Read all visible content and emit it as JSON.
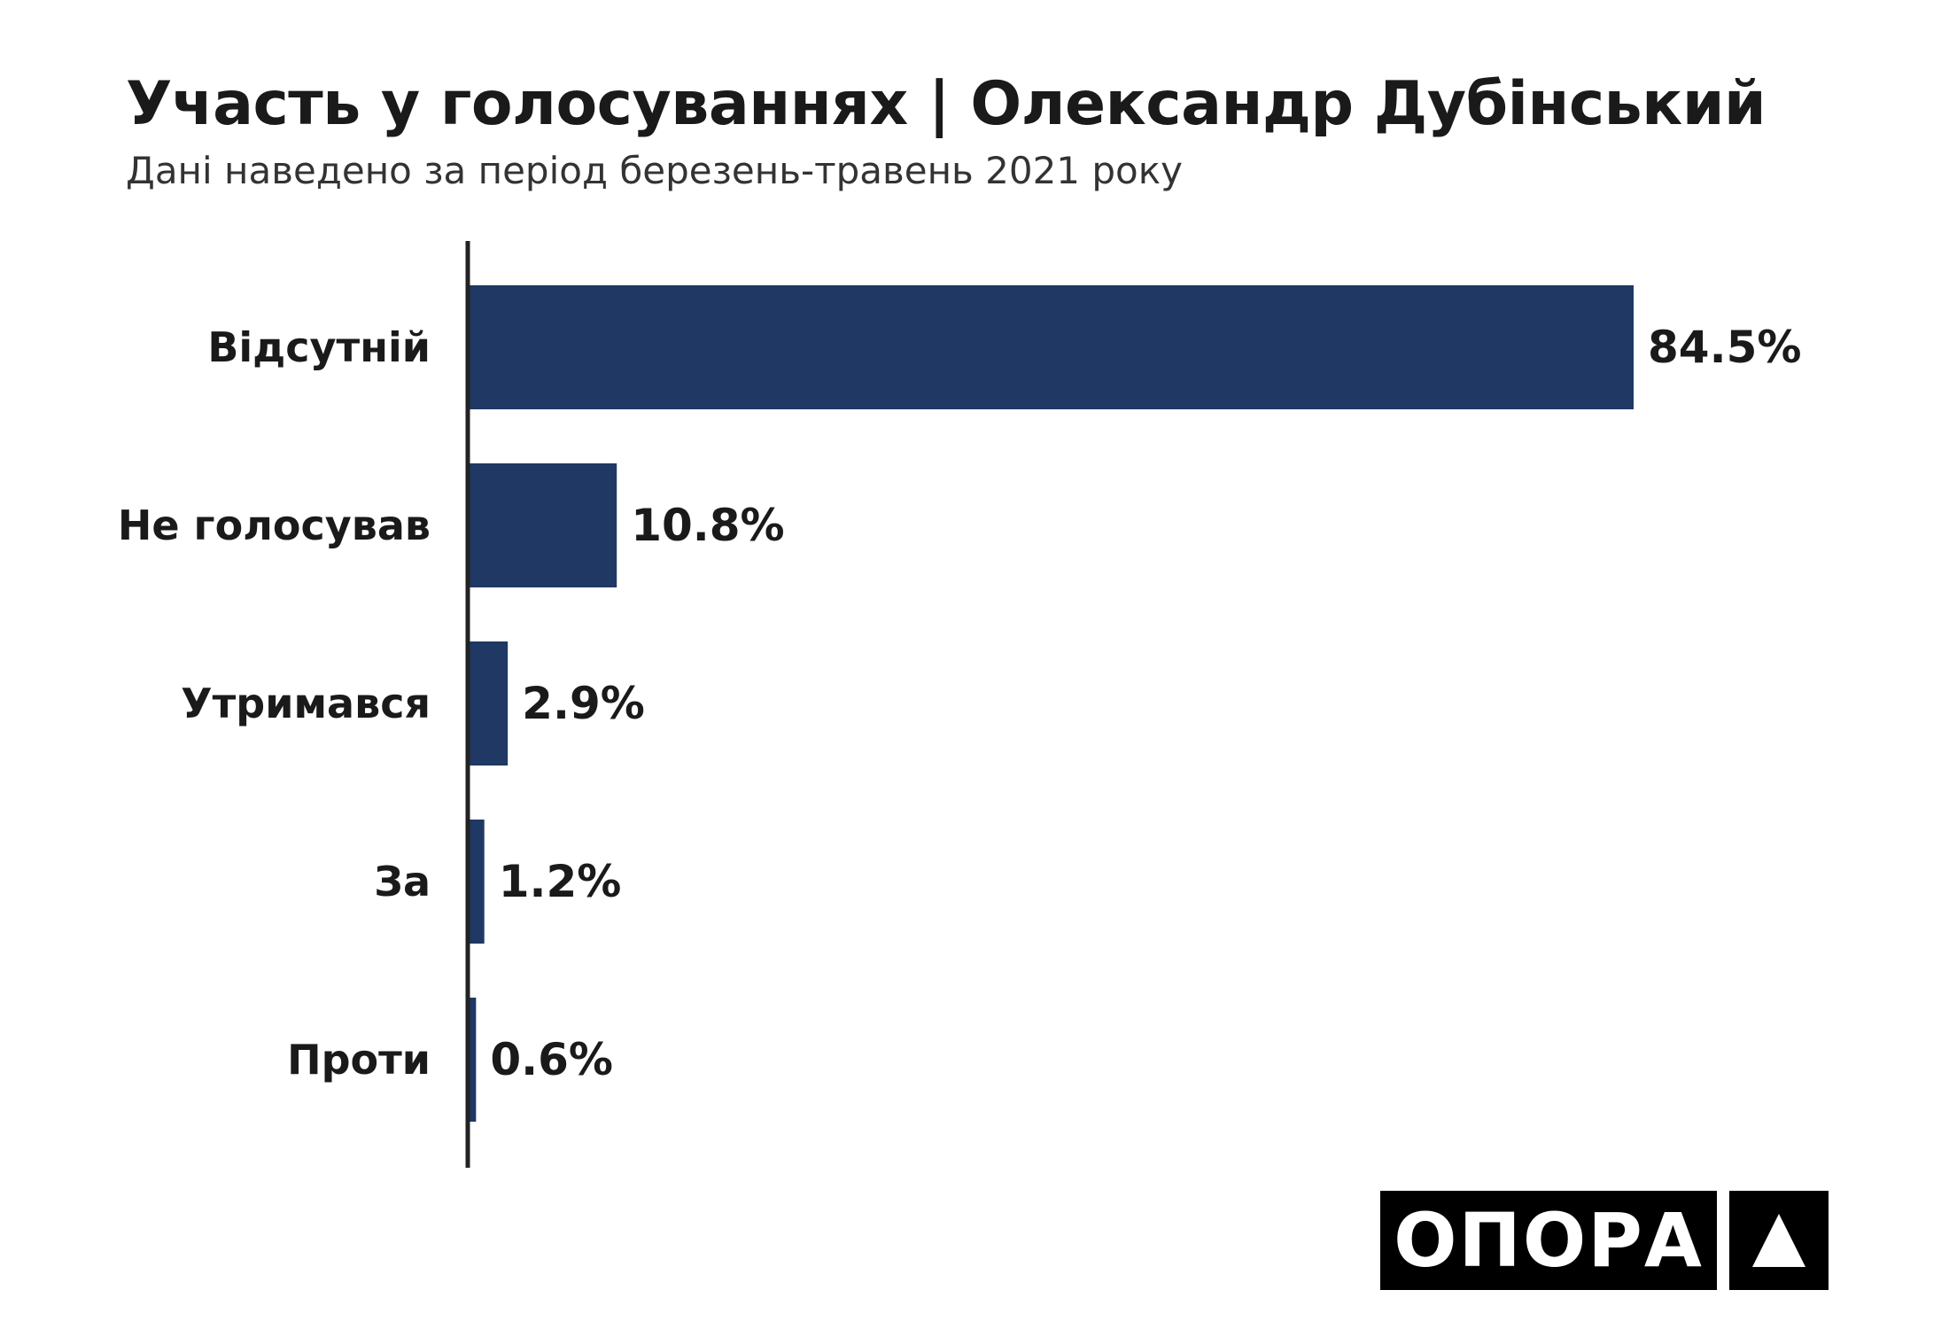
{
  "title": "Участь у голосуваннях | Олександр Дубінський",
  "subtitle": "Дані наведено за період березень-травень 2021 року",
  "chart_data": {
    "type": "bar",
    "orientation": "horizontal",
    "categories": [
      "Відсутній",
      "Не голосував",
      "Утримався",
      "За",
      "Проти"
    ],
    "values": [
      84.5,
      10.8,
      2.9,
      1.2,
      0.6
    ],
    "value_labels": [
      "84.5%",
      "10.8%",
      "2.9%",
      "1.2%",
      "0.6%"
    ],
    "title": "Участь у голосуваннях | Олександр Дубінський",
    "subtitle": "Дані наведено за період березень-травень 2021 року",
    "xlabel": "",
    "ylabel": "",
    "xlim": [
      0,
      100
    ],
    "grid": false,
    "bar_color": "#1f3864",
    "axis_color": "#222222"
  },
  "logo": {
    "word": "ОПОРА",
    "mark": "triangle-icon"
  }
}
